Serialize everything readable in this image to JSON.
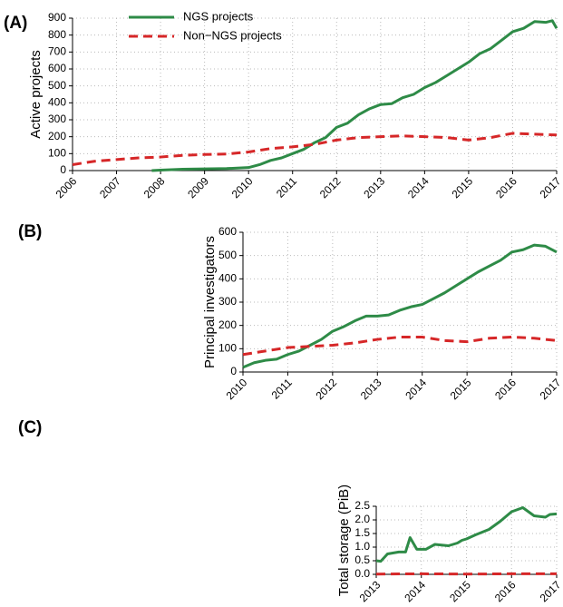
{
  "chart_data": [
    {
      "type": "line",
      "label": "(A)",
      "ylabel": "Active projects",
      "legend": "top-left",
      "grid": true,
      "xlim": [
        2006,
        2017
      ],
      "xticks": [
        2006,
        2007,
        2008,
        2009,
        2010,
        2011,
        2012,
        2013,
        2014,
        2015,
        2016,
        2017
      ],
      "ylim": [
        0,
        900
      ],
      "yticks": [
        0,
        100,
        200,
        300,
        400,
        500,
        600,
        700,
        800,
        900
      ],
      "series": [
        {
          "name": "NGS projects",
          "color": "#2e8b47",
          "dashed": false,
          "x": [
            2007.8,
            2008,
            2008.5,
            2009,
            2009.5,
            2010,
            2010.25,
            2010.5,
            2010.75,
            2011,
            2011.25,
            2011.5,
            2011.75,
            2012,
            2012.25,
            2012.5,
            2012.75,
            2013,
            2013.25,
            2013.5,
            2013.75,
            2014,
            2014.25,
            2014.5,
            2014.75,
            2015,
            2015.25,
            2015.5,
            2015.75,
            2016,
            2016.25,
            2016.5,
            2016.75,
            2016.9,
            2017
          ],
          "values": [
            0,
            3,
            8,
            10,
            12,
            18,
            35,
            60,
            75,
            100,
            125,
            165,
            195,
            255,
            280,
            330,
            365,
            390,
            395,
            430,
            450,
            490,
            520,
            560,
            600,
            640,
            690,
            720,
            770,
            820,
            840,
            880,
            875,
            885,
            840
          ]
        },
        {
          "name": "Non−NGS projects",
          "color": "#d62728",
          "dashed": true,
          "x": [
            2006,
            2006.5,
            2007,
            2007.5,
            2008,
            2008.5,
            2009,
            2009.5,
            2010,
            2010.5,
            2011,
            2011.5,
            2012,
            2012.5,
            2013,
            2013.5,
            2014,
            2014.5,
            2015,
            2015.5,
            2016,
            2016.5,
            2017
          ],
          "values": [
            35,
            55,
            65,
            75,
            80,
            90,
            95,
            98,
            110,
            130,
            140,
            155,
            180,
            195,
            200,
            205,
            200,
            195,
            180,
            195,
            220,
            215,
            210
          ]
        }
      ]
    },
    {
      "type": "line",
      "label": "(B)",
      "ylabel": "Principal investigators",
      "grid": true,
      "xlim": [
        2010,
        2017
      ],
      "xticks": [
        2010,
        2011,
        2012,
        2013,
        2014,
        2015,
        2016,
        2017
      ],
      "ylim": [
        0,
        600
      ],
      "yticks": [
        0,
        100,
        200,
        300,
        400,
        500,
        600
      ],
      "series": [
        {
          "color": "#2e8b47",
          "dashed": false,
          "x": [
            2010,
            2010.25,
            2010.5,
            2010.75,
            2011,
            2011.25,
            2011.5,
            2011.75,
            2012,
            2012.25,
            2012.5,
            2012.75,
            2013,
            2013.25,
            2013.5,
            2013.75,
            2014,
            2014.25,
            2014.5,
            2014.75,
            2015,
            2015.25,
            2015.5,
            2015.75,
            2016,
            2016.25,
            2016.5,
            2016.75,
            2017
          ],
          "values": [
            20,
            40,
            50,
            55,
            75,
            90,
            115,
            140,
            175,
            195,
            220,
            240,
            240,
            245,
            265,
            280,
            290,
            315,
            340,
            370,
            400,
            430,
            455,
            480,
            515,
            525,
            545,
            540,
            515
          ]
        },
        {
          "color": "#d62728",
          "dashed": true,
          "x": [
            2010,
            2010.5,
            2011,
            2011.5,
            2012,
            2012.5,
            2013,
            2013.5,
            2014,
            2014.5,
            2015,
            2015.5,
            2016,
            2016.5,
            2017
          ],
          "values": [
            75,
            90,
            105,
            110,
            115,
            125,
            140,
            150,
            150,
            135,
            130,
            145,
            150,
            145,
            135
          ]
        }
      ]
    },
    {
      "type": "line",
      "label": "(C)",
      "ylabel": "Total storage (PiB)",
      "grid": true,
      "xlim": [
        2013,
        2017
      ],
      "xticks": [
        2013,
        2014,
        2015,
        2016,
        2017
      ],
      "ylim": [
        0,
        2.5
      ],
      "yticks": [
        {
          "value": 0,
          "label": "0.0"
        },
        0.5,
        {
          "value": 1,
          "label": "1.0"
        },
        1.5,
        {
          "value": 2,
          "label": "2.0"
        },
        2.5
      ],
      "series": [
        {
          "color": "#2e8b47",
          "dashed": false,
          "x": [
            2013,
            2013.1,
            2013.25,
            2013.5,
            2013.65,
            2013.75,
            2013.9,
            2014.1,
            2014.3,
            2014.6,
            2014.8,
            2014.9,
            2015,
            2015.2,
            2015.5,
            2015.75,
            2016,
            2016.25,
            2016.5,
            2016.75,
            2016.85,
            2017
          ],
          "values": [
            0.5,
            0.48,
            0.75,
            0.82,
            0.82,
            1.35,
            0.92,
            0.92,
            1.1,
            1.05,
            1.15,
            1.25,
            1.3,
            1.45,
            1.65,
            1.95,
            2.3,
            2.45,
            2.15,
            2.1,
            2.2,
            2.22
          ]
        },
        {
          "color": "#d62728",
          "dashed": true,
          "x": [
            2013,
            2014,
            2015,
            2016,
            2017
          ],
          "values": [
            0.01,
            0.02,
            0.01,
            0.02,
            0.02
          ]
        }
      ]
    }
  ]
}
